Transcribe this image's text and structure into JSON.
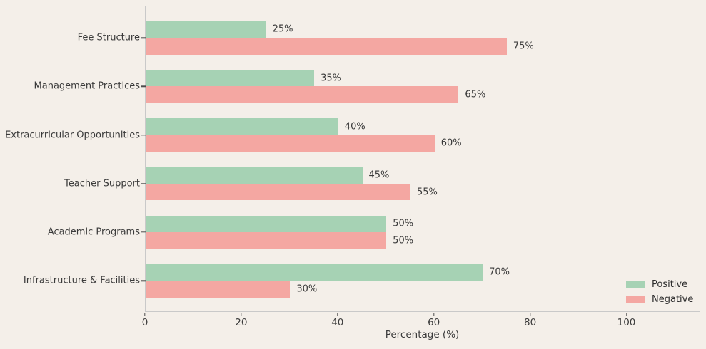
{
  "chart_data": {
    "type": "bar",
    "orientation": "horizontal",
    "title": "",
    "xlabel": "Percentage (%)",
    "ylabel": "",
    "categories": [
      "Fee Structure",
      "Management Practices",
      "Extracurricular Opportunities",
      "Teacher Support",
      "Academic Programs",
      "Infrastructure & Facilities"
    ],
    "series": [
      {
        "name": "Positive",
        "color": "#a6d2b4",
        "values": [
          25,
          35,
          40,
          45,
          50,
          70
        ],
        "labels": [
          "25%",
          "35%",
          "40%",
          "45%",
          "50%",
          "70%"
        ]
      },
      {
        "name": "Negative",
        "color": "#f4a7a2",
        "values": [
          75,
          65,
          60,
          55,
          50,
          30
        ],
        "labels": [
          "75%",
          "65%",
          "60%",
          "55%",
          "50%",
          "30%"
        ]
      }
    ],
    "x_ticks": [
      0,
      20,
      40,
      60,
      80,
      100
    ],
    "x_tick_labels": [
      "0",
      "20",
      "40",
      "60",
      "80",
      "100"
    ],
    "xlim": [
      0,
      115.2
    ],
    "grid": false,
    "legend": {
      "position": "lower-right",
      "entries": [
        "Positive",
        "Negative"
      ]
    },
    "colors": {
      "background": "#f4efe9",
      "spine": "#c9c9c9",
      "tick": "#4d4d4d",
      "text": "#3a3a3a"
    }
  }
}
